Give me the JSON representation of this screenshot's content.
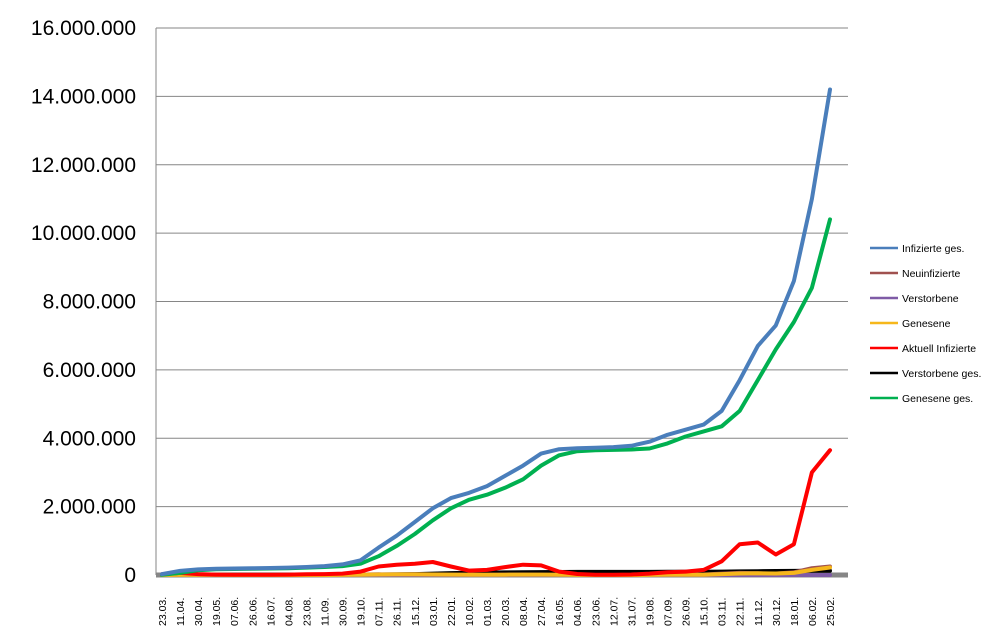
{
  "chart_data": {
    "type": "line",
    "title": "",
    "xlabel": "",
    "ylabel": "",
    "ylim": [
      0,
      16000000
    ],
    "yticks": [
      0,
      2000000,
      4000000,
      6000000,
      8000000,
      10000000,
      12000000,
      14000000,
      16000000
    ],
    "ytick_labels": [
      "0",
      "2.000.000",
      "4.000.000",
      "6.000.000",
      "8.000.000",
      "10.000.000",
      "12.000.000",
      "14.000.000",
      "16.000.000"
    ],
    "grid": "horizontal",
    "legend_position": "right",
    "xticks": [
      "23.03.",
      "11.04.",
      "30.04.",
      "19.05.",
      "07.06.",
      "26.06.",
      "16.07.",
      "04.08.",
      "23.08.",
      "11.09.",
      "30.09.",
      "19.10.",
      "07.11.",
      "26.11.",
      "15.12.",
      "03.01.",
      "22.01.",
      "10.02.",
      "01.03.",
      "20.03.",
      "08.04.",
      "27.04.",
      "16.05.",
      "04.06.",
      "23.06.",
      "12.07.",
      "31.07.",
      "19.08.",
      "07.09.",
      "26.09.",
      "15.10.",
      "03.11.",
      "22.11.",
      "11.12.",
      "30.12.",
      "18.01.",
      "06.02.",
      "25.02."
    ],
    "series": [
      {
        "name": "Infizierte ges.",
        "color": "#4a7ebb",
        "values": [
          25000,
          120000,
          165000,
          185000,
          190000,
          195000,
          205000,
          215000,
          235000,
          260000,
          310000,
          430000,
          800000,
          1150000,
          1550000,
          1950000,
          2250000,
          2400000,
          2600000,
          2900000,
          3200000,
          3550000,
          3680000,
          3710000,
          3720000,
          3740000,
          3780000,
          3900000,
          4100000,
          4250000,
          4400000,
          4800000,
          5700000,
          6700000,
          7300000,
          8600000,
          11000000,
          14200000
        ]
      },
      {
        "name": "Neuinfizierte",
        "color": "#a0514f",
        "values": [
          2000,
          3000,
          1500,
          800,
          500,
          500,
          600,
          900,
          1200,
          1500,
          5000,
          12000,
          20000,
          18000,
          20000,
          15000,
          8000,
          7000,
          9000,
          12000,
          15000,
          10000,
          3000,
          1000,
          600,
          700,
          1000,
          3000,
          6000,
          7000,
          15000,
          40000,
          60000,
          50000,
          40000,
          80000,
          200000,
          250000
        ]
      },
      {
        "name": "Verstorbene",
        "color": "#7f5ba6",
        "values": [
          100,
          200,
          150,
          100,
          50,
          30,
          20,
          20,
          20,
          30,
          60,
          150,
          300,
          400,
          500,
          700,
          600,
          300,
          200,
          200,
          250,
          300,
          200,
          100,
          40,
          30,
          20,
          20,
          30,
          50,
          60,
          150,
          300,
          400,
          350,
          300,
          250,
          250
        ]
      },
      {
        "name": "Genesene",
        "color": "#f6b71b",
        "values": [
          1000,
          2500,
          2500,
          1500,
          800,
          500,
          500,
          600,
          800,
          1200,
          3000,
          8000,
          15000,
          17000,
          18000,
          16000,
          12000,
          8000,
          8000,
          10000,
          13000,
          12000,
          6000,
          2000,
          800,
          700,
          800,
          2000,
          5000,
          6000,
          10000,
          25000,
          45000,
          50000,
          45000,
          60000,
          150000,
          220000
        ]
      },
      {
        "name": "Aktuell Infizierte",
        "color": "#ff0000",
        "values": [
          20000,
          60000,
          25000,
          12000,
          8000,
          7000,
          8000,
          12000,
          20000,
          25000,
          40000,
          100000,
          250000,
          300000,
          330000,
          380000,
          250000,
          130000,
          150000,
          230000,
          300000,
          280000,
          100000,
          30000,
          10000,
          8000,
          15000,
          40000,
          80000,
          100000,
          150000,
          400000,
          900000,
          950000,
          600000,
          900000,
          3000000,
          3650000
        ]
      },
      {
        "name": "Verstorbene ges.",
        "color": "#000000",
        "values": [
          500,
          3000,
          7000,
          8500,
          9000,
          9100,
          9200,
          9300,
          9400,
          9500,
          9800,
          11000,
          14000,
          19000,
          27000,
          40000,
          55000,
          65000,
          70000,
          75000,
          80000,
          85000,
          88000,
          89500,
          90000,
          90500,
          91000,
          91500,
          92500,
          94000,
          96000,
          100000,
          105000,
          112000,
          118000,
          120000,
          122000,
          123000
        ]
      },
      {
        "name": "Genesene ges.",
        "color": "#00b050",
        "values": [
          5000,
          60000,
          140000,
          168000,
          175000,
          180000,
          190000,
          200000,
          215000,
          235000,
          260000,
          330000,
          550000,
          850000,
          1200000,
          1600000,
          1950000,
          2200000,
          2350000,
          2550000,
          2800000,
          3200000,
          3500000,
          3620000,
          3650000,
          3660000,
          3670000,
          3700000,
          3850000,
          4050000,
          4200000,
          4350000,
          4800000,
          5700000,
          6600000,
          7400000,
          8400000,
          10400000
        ]
      }
    ]
  }
}
